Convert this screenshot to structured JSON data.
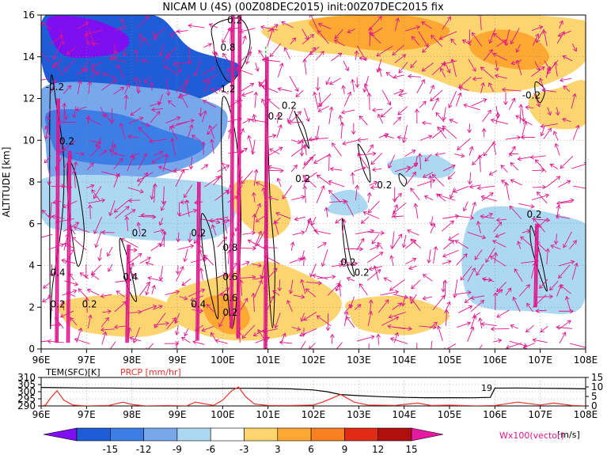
{
  "chart_data": [
    {
      "type": "heatmap",
      "title": "NICAM U (4S) (00Z08DEC2015) init:00Z07DEC2015 fix",
      "ylabel": "ALTITUDE [km]",
      "xlabel": "",
      "x_ticks": [
        "96E",
        "97E",
        "98E",
        "99E",
        "100E",
        "101E",
        "102E",
        "103E",
        "104E",
        "105E",
        "106E",
        "107E",
        "108E"
      ],
      "y_ticks": [
        "0",
        "2",
        "4",
        "6",
        "8",
        "10",
        "12",
        "14",
        "16"
      ],
      "xlim": [
        96,
        108
      ],
      "ylim": [
        0,
        16
      ],
      "contour_labels": [
        "0.2",
        "0.2",
        "-0.2",
        "0.2",
        "0.4",
        "0.2",
        "0.4",
        "0.2",
        "0.4",
        "0.2",
        "0.6",
        "0.2",
        "0.2",
        "0.2",
        "0.2",
        "0.2",
        "-0.2",
        "0.2",
        "0.2",
        "0.2",
        "1.2",
        "0.8",
        "0.8",
        "0.6"
      ],
      "fields": {
        "neg_patches": [
          {
            "lon": [
              96.1,
              97.6,
              98.6,
              99.3,
              100.4,
              99.5,
              97.9,
              96.8,
              96.1
            ],
            "alt": [
              16,
              16,
              15.9,
              14.4,
              13.5,
              12.0,
              11.8,
              12.4,
              13.0
            ],
            "level": -12
          },
          {
            "lon": [
              96.2,
              97.1,
              97.9,
              97.7,
              96.6,
              96.2
            ],
            "alt": [
              15.9,
              15.8,
              15.0,
              14.2,
              14.0,
              15.0
            ],
            "level": -15
          },
          {
            "lon": [
              96.1,
              98.5,
              99.5,
              100.1,
              99.8,
              98.8,
              97.2,
              96.3,
              96.1
            ],
            "alt": [
              12.6,
              12.5,
              12.0,
              11.2,
              9.5,
              8.4,
              7.7,
              7.9,
              9.8
            ],
            "level": -6
          },
          {
            "lon": [
              96.2,
              97.6,
              98.7,
              99.6,
              99.0,
              97.7,
              96.5,
              96.2
            ],
            "alt": [
              11.4,
              11.3,
              10.5,
              9.8,
              9.0,
              8.8,
              9.2,
              10.2
            ],
            "level": -9
          },
          {
            "lon": [
              96.1,
              99.6,
              100.3,
              99.9,
              98.5,
              97.0,
              96.1
            ],
            "alt": [
              8.2,
              8.0,
              7.0,
              5.4,
              5.2,
              5.6,
              6.0
            ],
            "level": -3
          },
          {
            "lon": [
              105.8,
              106.5,
              107.2,
              107.8,
              107.9,
              107.2,
              106.2,
              105.7
            ],
            "alt": [
              5.4,
              6.0,
              5.6,
              4.5,
              3.0,
              2.6,
              2.8,
              4.0
            ],
            "level": -6
          },
          {
            "lon": [
              105.6,
              107.8,
              108,
              107.9,
              106.8,
              105.4
            ],
            "alt": [
              6.6,
              6.2,
              5.0,
              2.0,
              1.8,
              2.5
            ],
            "level": -3
          },
          {
            "lon": [
              103.7,
              104.6,
              105.1,
              104.8,
              103.9,
              103.7
            ],
            "alt": [
              9.0,
              9.3,
              8.7,
              8.2,
              8.3,
              8.6
            ],
            "level": -3
          },
          {
            "lon": [
              102.4,
              102.9,
              103.2,
              102.8,
              102.3,
              102.4
            ],
            "alt": [
              7.4,
              7.6,
              6.8,
              6.4,
              6.6,
              7.0
            ],
            "level": -3
          }
        ],
        "pos_patches": [
          {
            "lon": [
              101.0,
              102.6,
              103.8,
              105.2,
              106.7,
              107.8,
              108,
              108,
              107.0,
              105.6,
              104.3,
              103.0,
              101.6,
              101.0
            ],
            "alt": [
              15.4,
              16,
              16,
              16,
              16,
              15.8,
              15.5,
              13.8,
              12.6,
              12.3,
              13.2,
              14.0,
              14.3,
              14.9
            ],
            "level": 3
          },
          {
            "lon": [
              102.0,
              103.2,
              104.3,
              105.0,
              104.5,
              103.4,
              102.4,
              102.0
            ],
            "alt": [
              15.8,
              16,
              15.9,
              15.3,
              14.5,
              14.3,
              14.7,
              15.3
            ],
            "level": 6
          },
          {
            "lon": [
              105.5,
              106.1,
              106.8,
              107.2,
              106.8,
              106.0,
              105.5
            ],
            "alt": [
              14.9,
              15.3,
              15.0,
              14.0,
              13.4,
              13.6,
              14.2
            ],
            "level": 6
          },
          {
            "lon": [
              96.5,
              97.9,
              98.8,
              99.1,
              98.3,
              97.0,
              96.5
            ],
            "alt": [
              2.3,
              2.6,
              2.2,
              1.3,
              0.6,
              0.8,
              1.4
            ],
            "level": 3
          },
          {
            "lon": [
              98.9,
              100.1,
              100.9,
              101.8,
              102.6,
              102.3,
              101.1,
              99.9,
              98.9
            ],
            "alt": [
              2.7,
              3.6,
              4.2,
              3.6,
              2.4,
              1.2,
              0.5,
              0.5,
              1.4
            ],
            "level": 3
          },
          {
            "lon": [
              99.6,
              100.3,
              100.6,
              100.2,
              99.7
            ],
            "alt": [
              2.4,
              2.5,
              1.4,
              0.7,
              1.3
            ],
            "level": 6
          },
          {
            "lon": [
              100.3,
              101.2,
              101.5,
              101.0,
              100.3
            ],
            "alt": [
              8.0,
              7.8,
              6.2,
              5.3,
              6.5
            ],
            "level": 3
          },
          {
            "lon": [
              102.8,
              104.0,
              105.0,
              104.2,
              103.1,
              102.8
            ],
            "alt": [
              2.3,
              2.5,
              1.6,
              0.7,
              0.9,
              1.6
            ],
            "level": 3
          },
          {
            "lon": [
              106.8,
              107.4,
              108,
              108,
              107.2,
              106.8
            ],
            "alt": [
              12.1,
              12.5,
              12.8,
              10.8,
              10.6,
              11.3
            ],
            "level": 3
          }
        ],
        "contours": [
          {
            "lon": [
              96.2,
              96.35,
              96.5,
              96.45,
              96.25,
              96.2
            ],
            "alt": [
              12.5,
              11.5,
              9.0,
              6.0,
              3.0,
              1.5
            ]
          },
          {
            "lon": [
              96.6,
              96.8,
              96.95,
              96.8,
              96.6
            ],
            "alt": [
              9.0,
              8.0,
              5.5,
              4.0,
              7.0
            ]
          },
          {
            "lon": [
              97.75,
              97.95,
              98.1,
              97.9,
              97.75
            ],
            "alt": [
              5.3,
              4.0,
              2.3,
              3.0,
              4.5
            ]
          },
          {
            "lon": [
              99.55,
              99.8,
              99.9,
              99.7,
              99.55
            ],
            "alt": [
              6.5,
              5.0,
              1.5,
              3.0,
              5.0
            ]
          },
          {
            "lon": [
              100.0,
              100.3,
              100.4,
              100.2,
              100.0
            ],
            "alt": [
              12.0,
              10.0,
              5.5,
              1.0,
              7.0
            ]
          },
          {
            "lon": [
              99.8,
              100.4,
              100.6,
              100.2,
              99.9,
              99.8
            ],
            "alt": [
              15.5,
              15.8,
              14.5,
              12.8,
              13.6,
              14.6
            ]
          },
          {
            "lon": [
              100.95,
              101.0,
              101.05,
              101.15,
              101.1,
              101.0,
              100.95
            ],
            "alt": [
              13.0,
              10.0,
              7.0,
              4.0,
              1.0,
              4.0,
              9.0
            ]
          },
          {
            "lon": [
              101.6,
              101.7,
              101.9,
              101.8,
              101.6
            ],
            "alt": [
              11.3,
              10.6,
              9.6,
              10.6,
              11.3
            ]
          },
          {
            "lon": [
              102.65,
              102.8,
              102.9,
              102.75,
              102.65
            ],
            "alt": [
              6.2,
              4.5,
              3.5,
              4.0,
              5.5
            ]
          },
          {
            "lon": [
              103.0,
              103.2,
              103.25,
              103.1,
              103.0
            ],
            "alt": [
              9.8,
              9.0,
              8.0,
              8.6,
              9.5
            ]
          },
          {
            "lon": [
              103.9,
              104.05,
              104.0,
              103.9
            ],
            "alt": [
              8.4,
              8.1,
              7.8,
              8.1
            ]
          },
          {
            "lon": [
              106.8,
              107.0,
              107.15,
              107.0,
              106.8
            ],
            "alt": [
              5.9,
              4.5,
              2.8,
              3.5,
              5.0
            ]
          },
          {
            "lon": [
              106.9,
              107.1,
              107.0,
              106.9
            ],
            "alt": [
              12.8,
              12.4,
              11.8,
              12.2
            ]
          }
        ],
        "vector_shafts": [
          {
            "lon": 100.2,
            "alt_top": 16,
            "alt_bottom": 1.0
          },
          {
            "lon": 100.35,
            "alt_top": 16,
            "alt_bottom": 0.5
          },
          {
            "lon": 100.95,
            "alt_top": 14.0,
            "alt_bottom": 0.0
          },
          {
            "lon": 99.45,
            "alt_top": 8.0,
            "alt_bottom": 0.4
          },
          {
            "lon": 96.35,
            "alt_top": 12.0,
            "alt_bottom": 0.3
          },
          {
            "lon": 96.6,
            "alt_top": 9.5,
            "alt_bottom": 0.3
          },
          {
            "lon": 97.9,
            "alt_top": 5.0,
            "alt_bottom": 0.3
          },
          {
            "lon": 106.9,
            "alt_top": 6.0,
            "alt_bottom": 2.0
          }
        ],
        "vector_region": {
          "lon": [
            96.2,
            107.9
          ],
          "alt": [
            0.3,
            15.8
          ]
        }
      },
      "colorbar": {
        "levels": [
          "-15",
          "-12",
          "-9",
          "-6",
          "-3",
          "3",
          "6",
          "9",
          "12",
          "15"
        ],
        "unit": "[m/s]",
        "colors": [
          "#7d0ff0",
          "#1e5cd8",
          "#3c7ee6",
          "#78a8ec",
          "#acd8f2",
          "#ffffff",
          "#fcd570",
          "#fca832",
          "#f8801e",
          "#e02c14",
          "#b00f10",
          "#e41aa0"
        ]
      },
      "vector_label": "Wx100(vector)",
      "vector_color": "#e0158c"
    },
    {
      "type": "line",
      "title": "",
      "legend": [
        "TEM(SFC)[K]",
        "PRCP [mm/hr]"
      ],
      "x_ticks": [
        "96E",
        "97E",
        "98E",
        "99E",
        "100E",
        "101E",
        "102E",
        "103E",
        "104E",
        "105E",
        "106E",
        "107E",
        "108E"
      ],
      "y_left_ticks": [
        "310",
        "305",
        "300",
        "295",
        "290"
      ],
      "y_right_ticks": [
        "15",
        "10",
        "5",
        "0"
      ],
      "xlim": [
        96,
        108
      ],
      "y_left_lim": [
        290,
        310
      ],
      "y_right_lim": [
        0,
        15
      ],
      "annotation": "19",
      "series": [
        {
          "name": "TEM(SFC)[K]",
          "color": "#000000",
          "x": [
            96,
            96.5,
            97,
            97.5,
            98,
            98.5,
            99,
            99.5,
            100,
            100.5,
            101,
            101.5,
            102,
            102.3,
            102.6,
            103,
            103.5,
            104,
            104.5,
            105,
            105.5,
            105.9,
            106.0,
            106.5,
            107,
            107.5,
            108
          ],
          "y": [
            303,
            302.8,
            302.6,
            302.6,
            302.4,
            302.3,
            302.2,
            302.2,
            302.3,
            302.4,
            302.3,
            302.0,
            301.2,
            300.0,
            298.0,
            297.2,
            296.5,
            296.0,
            295.8,
            295.8,
            295.7,
            296.0,
            302.5,
            302.6,
            302.4,
            302.3,
            302.0
          ]
        },
        {
          "name": "PRCP [mm/hr]",
          "color": "#e8312a",
          "x": [
            96,
            96.1,
            96.2,
            96.35,
            96.5,
            96.7,
            97,
            97.5,
            97.8,
            98,
            98.3,
            98.8,
            99.2,
            99.4,
            99.8,
            100,
            100.2,
            100.35,
            100.5,
            100.7,
            101,
            101.5,
            102,
            102.2,
            102.4,
            102.6,
            102.9,
            103.2,
            103.8,
            104.3,
            104.6,
            105,
            105.6,
            106,
            106.5,
            107,
            107.3,
            107.7,
            108
          ],
          "y": [
            0,
            0.5,
            4,
            8,
            3,
            0.5,
            0,
            0.3,
            2,
            0.8,
            0,
            0.2,
            0,
            2,
            0.3,
            3,
            8,
            10,
            5,
            1,
            0.3,
            0.2,
            0.5,
            2,
            4,
            6,
            2,
            0.5,
            0.3,
            1.5,
            0.2,
            0.4,
            0,
            0.2,
            2,
            0.5,
            1.5,
            0.3,
            0
          ]
        }
      ]
    }
  ]
}
